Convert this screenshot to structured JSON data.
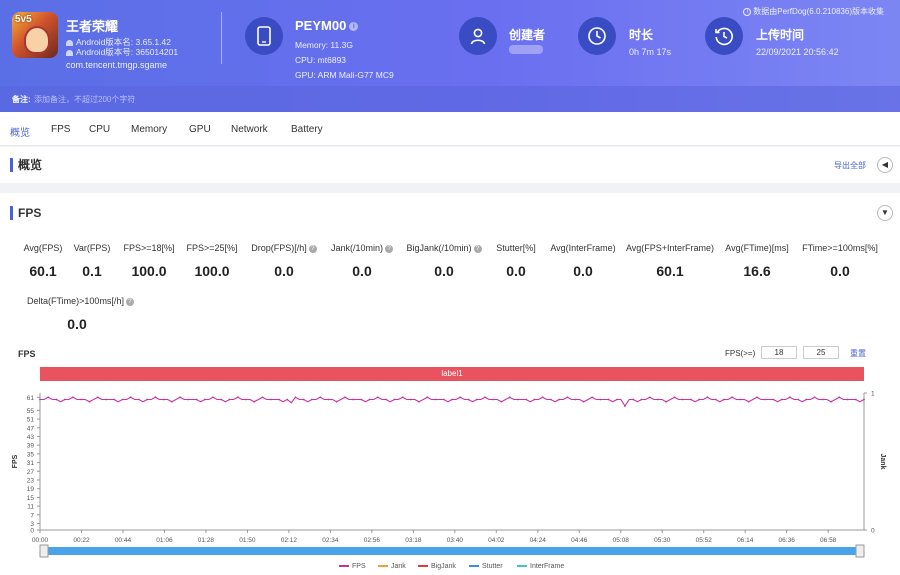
{
  "app": {
    "name": "王者荣耀",
    "android_version_name": "Android版本名: 3.65.1.42",
    "android_version_code": "Android版本号: 365014201",
    "package": "com.tencent.tmgp.sgame",
    "icon_badge": "5v5"
  },
  "device": {
    "name": "PEYM00",
    "memory": "Memory: 11.3G",
    "cpu": "CPU: mt6893",
    "gpu": "GPU: ARM Mali-G77 MC9"
  },
  "creator": {
    "title": "创建者"
  },
  "duration": {
    "title": "时长",
    "value": "0h 7m 17s"
  },
  "upload": {
    "title": "上传时间",
    "value": "22/09/2021 20:56:42"
  },
  "data_source": "数据由PerfDog(6.0.210836)版本收集",
  "note": {
    "label": "备注:",
    "placeholder": "添加备注，不超过200个字符"
  },
  "tabs": [
    "概览",
    "FPS",
    "CPU",
    "Memory",
    "GPU",
    "Network",
    "Battery"
  ],
  "overview": {
    "title": "概览",
    "export_label": "导出全部"
  },
  "fps_section": {
    "title": "FPS",
    "metrics": [
      {
        "label": "Avg(FPS)",
        "value": "60.1",
        "help": false
      },
      {
        "label": "Var(FPS)",
        "value": "0.1",
        "help": false
      },
      {
        "label": "FPS>=18[%]",
        "value": "100.0",
        "help": false
      },
      {
        "label": "FPS>=25[%]",
        "value": "100.0",
        "help": false
      },
      {
        "label": "Drop(FPS)[/h]",
        "value": "0.0",
        "help": true
      },
      {
        "label": "Jank(/10min)",
        "value": "0.0",
        "help": true
      },
      {
        "label": "BigJank(/10min)",
        "value": "0.0",
        "help": true
      },
      {
        "label": "Stutter[%]",
        "value": "0.0",
        "help": false
      },
      {
        "label": "Avg(InterFrame)",
        "value": "0.0",
        "help": false
      },
      {
        "label": "Avg(FPS+InterFrame)",
        "value": "60.1",
        "help": false
      },
      {
        "label": "Avg(FTime)[ms]",
        "value": "16.6",
        "help": false
      },
      {
        "label": "FTime>=100ms[%]",
        "value": "0.0",
        "help": false
      },
      {
        "label": "Delta(FTime)>100ms[/h]",
        "value": "0.0",
        "help": true
      }
    ],
    "chart_title": "FPS",
    "filter_label": "FPS(>=)",
    "filter_values": [
      "18",
      "25"
    ],
    "reset_label": "重置",
    "label_bar": "label1"
  },
  "colors": {
    "accent": "#4a62d8",
    "fps": "#c8329f",
    "jank": "#f0a040",
    "bigjank": "#e03c3c",
    "stutter": "#3c8ee0",
    "interframe": "#3cc8c8",
    "label_bar": "#e8535f"
  },
  "chart_data": {
    "type": "line",
    "title": "FPS",
    "xlabel": "",
    "ylabel": "FPS",
    "y2label": "Jank",
    "y_ticks": [
      0,
      3,
      7,
      11,
      15,
      19,
      23,
      27,
      31,
      35,
      39,
      43,
      47,
      51,
      55,
      61
    ],
    "y2_ticks": [
      0,
      1
    ],
    "x_ticks": [
      "00:00",
      "00:22",
      "00:44",
      "01:06",
      "01:28",
      "01:50",
      "02:12",
      "02:34",
      "02:56",
      "03:18",
      "03:40",
      "04:02",
      "04:24",
      "04:46",
      "05:08",
      "05:30",
      "05:52",
      "06:14",
      "06:36",
      "06:58"
    ],
    "ylim": [
      0,
      63
    ],
    "xlim_seconds": [
      0,
      437
    ],
    "series": [
      {
        "name": "FPS",
        "baseline": 60,
        "values_pattern": [
          60,
          60,
          61,
          60,
          60,
          59,
          60,
          60,
          61,
          60,
          60,
          60,
          59,
          60,
          61,
          60,
          60,
          60,
          60,
          59
        ]
      },
      {
        "name": "Jank",
        "values": []
      },
      {
        "name": "BigJank",
        "values": []
      },
      {
        "name": "Stutter",
        "values": []
      },
      {
        "name": "InterFrame",
        "values": []
      }
    ],
    "legend_position": "bottom"
  }
}
